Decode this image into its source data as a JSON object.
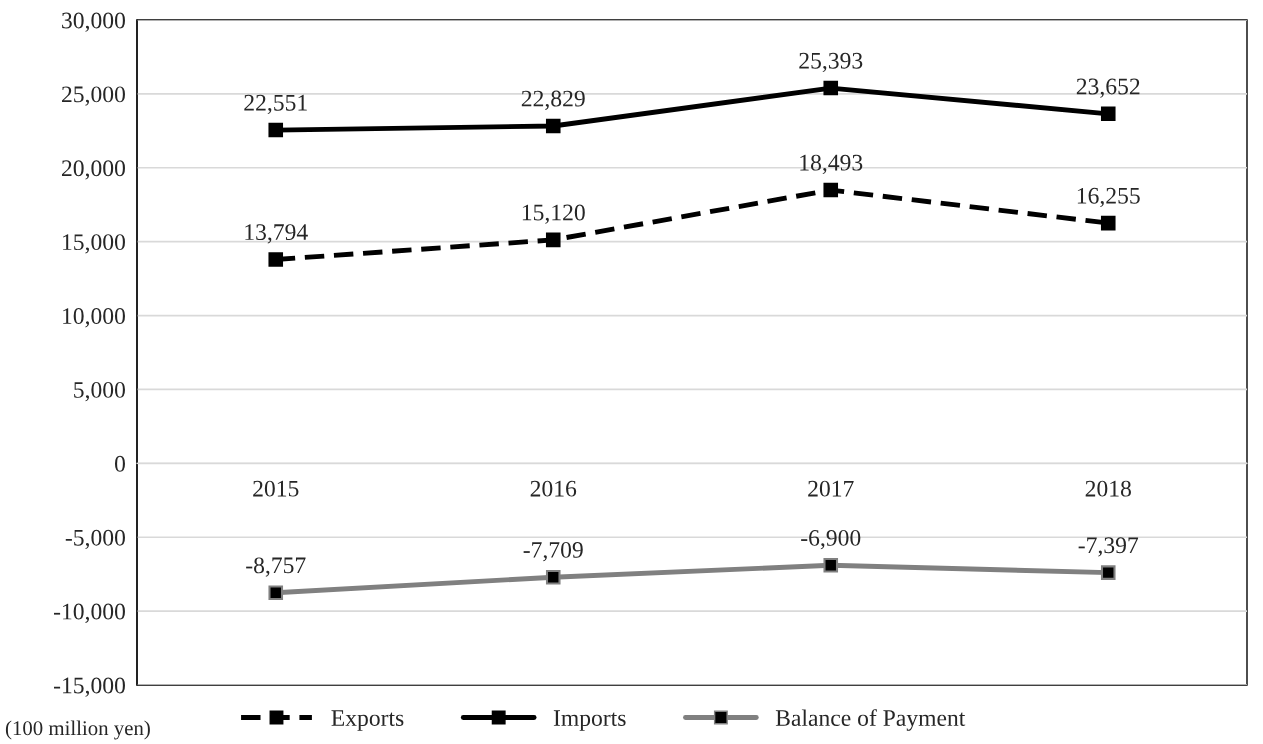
{
  "chart_data": {
    "type": "line",
    "categories": [
      "2015",
      "2016",
      "2017",
      "2018"
    ],
    "series": [
      {
        "name": "Exports",
        "color": "#000000",
        "line_style": "dashed",
        "values": [
          13794,
          15120,
          18493,
          16255
        ],
        "value_labels": [
          "13,794",
          "15,120",
          "18,493",
          "16,255"
        ]
      },
      {
        "name": "Imports",
        "color": "#000000",
        "line_style": "solid",
        "values": [
          22551,
          22829,
          25393,
          23652
        ],
        "value_labels": [
          "22,551",
          "22,829",
          "25,393",
          "23,652"
        ]
      },
      {
        "name": "Balance of Payment",
        "color": "#808080",
        "line_style": "solid",
        "values": [
          -8757,
          -7709,
          -6900,
          -7397
        ],
        "value_labels": [
          "-8,757",
          "-7,709",
          "-6,900",
          "-7,397"
        ]
      }
    ],
    "ylim": [
      -15000,
      30000
    ],
    "yticks": [
      {
        "value": -15000,
        "label": "-15,000"
      },
      {
        "value": -10000,
        "label": "-10,000"
      },
      {
        "value": -5000,
        "label": "-5,000"
      },
      0,
      {
        "value": 5000,
        "label": "5,000"
      },
      {
        "value": 10000,
        "label": "10,000"
      },
      {
        "value": 15000,
        "label": "15,000"
      },
      {
        "value": 20000,
        "label": "20,000"
      },
      {
        "value": 25000,
        "label": "25,000"
      },
      {
        "value": 30000,
        "label": "30,000"
      }
    ],
    "grid": "y",
    "marker": "square",
    "legend": "bottom",
    "annotations": [
      "(100 million yen)"
    ]
  }
}
